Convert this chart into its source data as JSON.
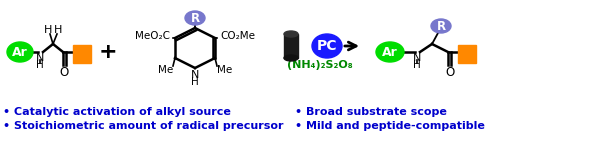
{
  "bg_color": "#ffffff",
  "bullet_color": "#0000cc",
  "green_color": "#00dd00",
  "bullet_points_left": [
    "• Catalytic activation of alkyl source",
    "• Stoichiometric amount of radical precursor"
  ],
  "bullet_points_right": [
    "• Broad substrate scope",
    "• Mild and peptide-compatible"
  ],
  "nh4_text": "(NH₄)₂S₂O₈",
  "nh4_color": "#008800",
  "pc_color": "#1a1aff",
  "ar_color": "#00dd00",
  "r_color": "#7777cc",
  "orange_color": "#ff8800",
  "figsize": [
    6.0,
    1.68
  ],
  "dpi": 100
}
